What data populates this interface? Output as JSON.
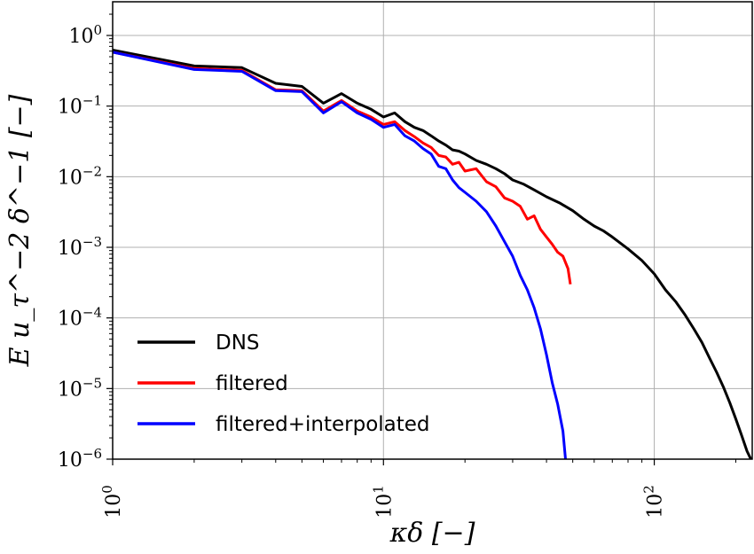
{
  "chart_data": {
    "type": "line",
    "x_scale": "log",
    "y_scale": "log",
    "xlim": [
      1,
      230
    ],
    "ylim": [
      1e-06,
      3
    ],
    "xlabel": "κδ [−]",
    "ylabel": "E  u_τ^−2  δ^−1 [−]",
    "grid": true,
    "legend_position": "lower-left",
    "x_ticks": [
      {
        "value": 1,
        "label_base": "10",
        "label_exp": "0"
      },
      {
        "value": 10,
        "label_base": "10",
        "label_exp": "1"
      },
      {
        "value": 100,
        "label_base": "10",
        "label_exp": "2"
      }
    ],
    "y_ticks": [
      {
        "value": 1,
        "label_base": "10",
        "label_exp": "0"
      },
      {
        "value": 0.1,
        "label_base": "10",
        "label_exp": "−1"
      },
      {
        "value": 0.01,
        "label_base": "10",
        "label_exp": "−2"
      },
      {
        "value": 0.001,
        "label_base": "10",
        "label_exp": "−3"
      },
      {
        "value": 0.0001,
        "label_base": "10",
        "label_exp": "−4"
      },
      {
        "value": 1e-05,
        "label_base": "10",
        "label_exp": "−5"
      },
      {
        "value": 1e-06,
        "label_base": "10",
        "label_exp": "−6"
      }
    ],
    "series": [
      {
        "name": "DNS",
        "color": "#000000",
        "points": [
          [
            1,
            0.62
          ],
          [
            2,
            0.37
          ],
          [
            3,
            0.35
          ],
          [
            4,
            0.21
          ],
          [
            5,
            0.19
          ],
          [
            6,
            0.11
          ],
          [
            7,
            0.15
          ],
          [
            8,
            0.11
          ],
          [
            9,
            0.09
          ],
          [
            10,
            0.07
          ],
          [
            11,
            0.08
          ],
          [
            12,
            0.06
          ],
          [
            13,
            0.05
          ],
          [
            14,
            0.045
          ],
          [
            15,
            0.038
          ],
          [
            16,
            0.032
          ],
          [
            17,
            0.028
          ],
          [
            18,
            0.024
          ],
          [
            19,
            0.023
          ],
          [
            20,
            0.021
          ],
          [
            22,
            0.017
          ],
          [
            24,
            0.015
          ],
          [
            26,
            0.013
          ],
          [
            28,
            0.011
          ],
          [
            30,
            0.009
          ],
          [
            33,
            0.0078
          ],
          [
            36,
            0.0065
          ],
          [
            40,
            0.0052
          ],
          [
            45,
            0.0042
          ],
          [
            50,
            0.0033
          ],
          [
            55,
            0.0025
          ],
          [
            60,
            0.002
          ],
          [
            65,
            0.0017
          ],
          [
            70,
            0.0014
          ],
          [
            80,
            0.00095
          ],
          [
            90,
            0.00065
          ],
          [
            100,
            0.00042
          ],
          [
            110,
            0.00025
          ],
          [
            120,
            0.00017
          ],
          [
            130,
            0.00011
          ],
          [
            140,
            7e-05
          ],
          [
            150,
            4.5e-05
          ],
          [
            160,
            2.7e-05
          ],
          [
            170,
            1.7e-05
          ],
          [
            180,
            1.05e-05
          ],
          [
            190,
            6.3e-06
          ],
          [
            200,
            3.7e-06
          ],
          [
            210,
            2.2e-06
          ],
          [
            220,
            1.3e-06
          ],
          [
            228,
            9.8e-07
          ]
        ]
      },
      {
        "name": "filtered",
        "color": "#ff0000",
        "points": [
          [
            1,
            0.58
          ],
          [
            2,
            0.34
          ],
          [
            3,
            0.32
          ],
          [
            4,
            0.17
          ],
          [
            5,
            0.165
          ],
          [
            6,
            0.085
          ],
          [
            7,
            0.12
          ],
          [
            8,
            0.085
          ],
          [
            9,
            0.07
          ],
          [
            10,
            0.055
          ],
          [
            11,
            0.06
          ],
          [
            12,
            0.045
          ],
          [
            13,
            0.037
          ],
          [
            14,
            0.03
          ],
          [
            15,
            0.026
          ],
          [
            16,
            0.02
          ],
          [
            17,
            0.019
          ],
          [
            18,
            0.015
          ],
          [
            19,
            0.016
          ],
          [
            20,
            0.012
          ],
          [
            22,
            0.013
          ],
          [
            24,
            0.0085
          ],
          [
            26,
            0.0072
          ],
          [
            28,
            0.005
          ],
          [
            30,
            0.0045
          ],
          [
            32,
            0.0038
          ],
          [
            34,
            0.0025
          ],
          [
            36,
            0.0028
          ],
          [
            38,
            0.0018
          ],
          [
            40,
            0.0014
          ],
          [
            42,
            0.0011
          ],
          [
            44,
            0.00085
          ],
          [
            46,
            0.00075
          ],
          [
            48,
            0.0005
          ],
          [
            49,
            0.0003
          ]
        ]
      },
      {
        "name": "filtered+interpolated",
        "color": "#0000ff",
        "points": [
          [
            1,
            0.58
          ],
          [
            2,
            0.33
          ],
          [
            3,
            0.31
          ],
          [
            4,
            0.165
          ],
          [
            5,
            0.16
          ],
          [
            6,
            0.08
          ],
          [
            7,
            0.115
          ],
          [
            8,
            0.08
          ],
          [
            9,
            0.065
          ],
          [
            10,
            0.05
          ],
          [
            11,
            0.055
          ],
          [
            12,
            0.038
          ],
          [
            13,
            0.032
          ],
          [
            14,
            0.025
          ],
          [
            15,
            0.021
          ],
          [
            16,
            0.014
          ],
          [
            17,
            0.013
          ],
          [
            18,
            0.009
          ],
          [
            19,
            0.007
          ],
          [
            20,
            0.006
          ],
          [
            22,
            0.0045
          ],
          [
            24,
            0.0032
          ],
          [
            26,
            0.002
          ],
          [
            28,
            0.0012
          ],
          [
            30,
            0.00075
          ],
          [
            32,
            0.0004
          ],
          [
            34,
            0.00025
          ],
          [
            36,
            0.00014
          ],
          [
            38,
            7e-05
          ],
          [
            40,
            3e-05
          ],
          [
            42,
            1.2e-05
          ],
          [
            44,
            6e-06
          ],
          [
            46,
            2.5e-06
          ],
          [
            47,
            1e-06
          ]
        ]
      }
    ]
  }
}
